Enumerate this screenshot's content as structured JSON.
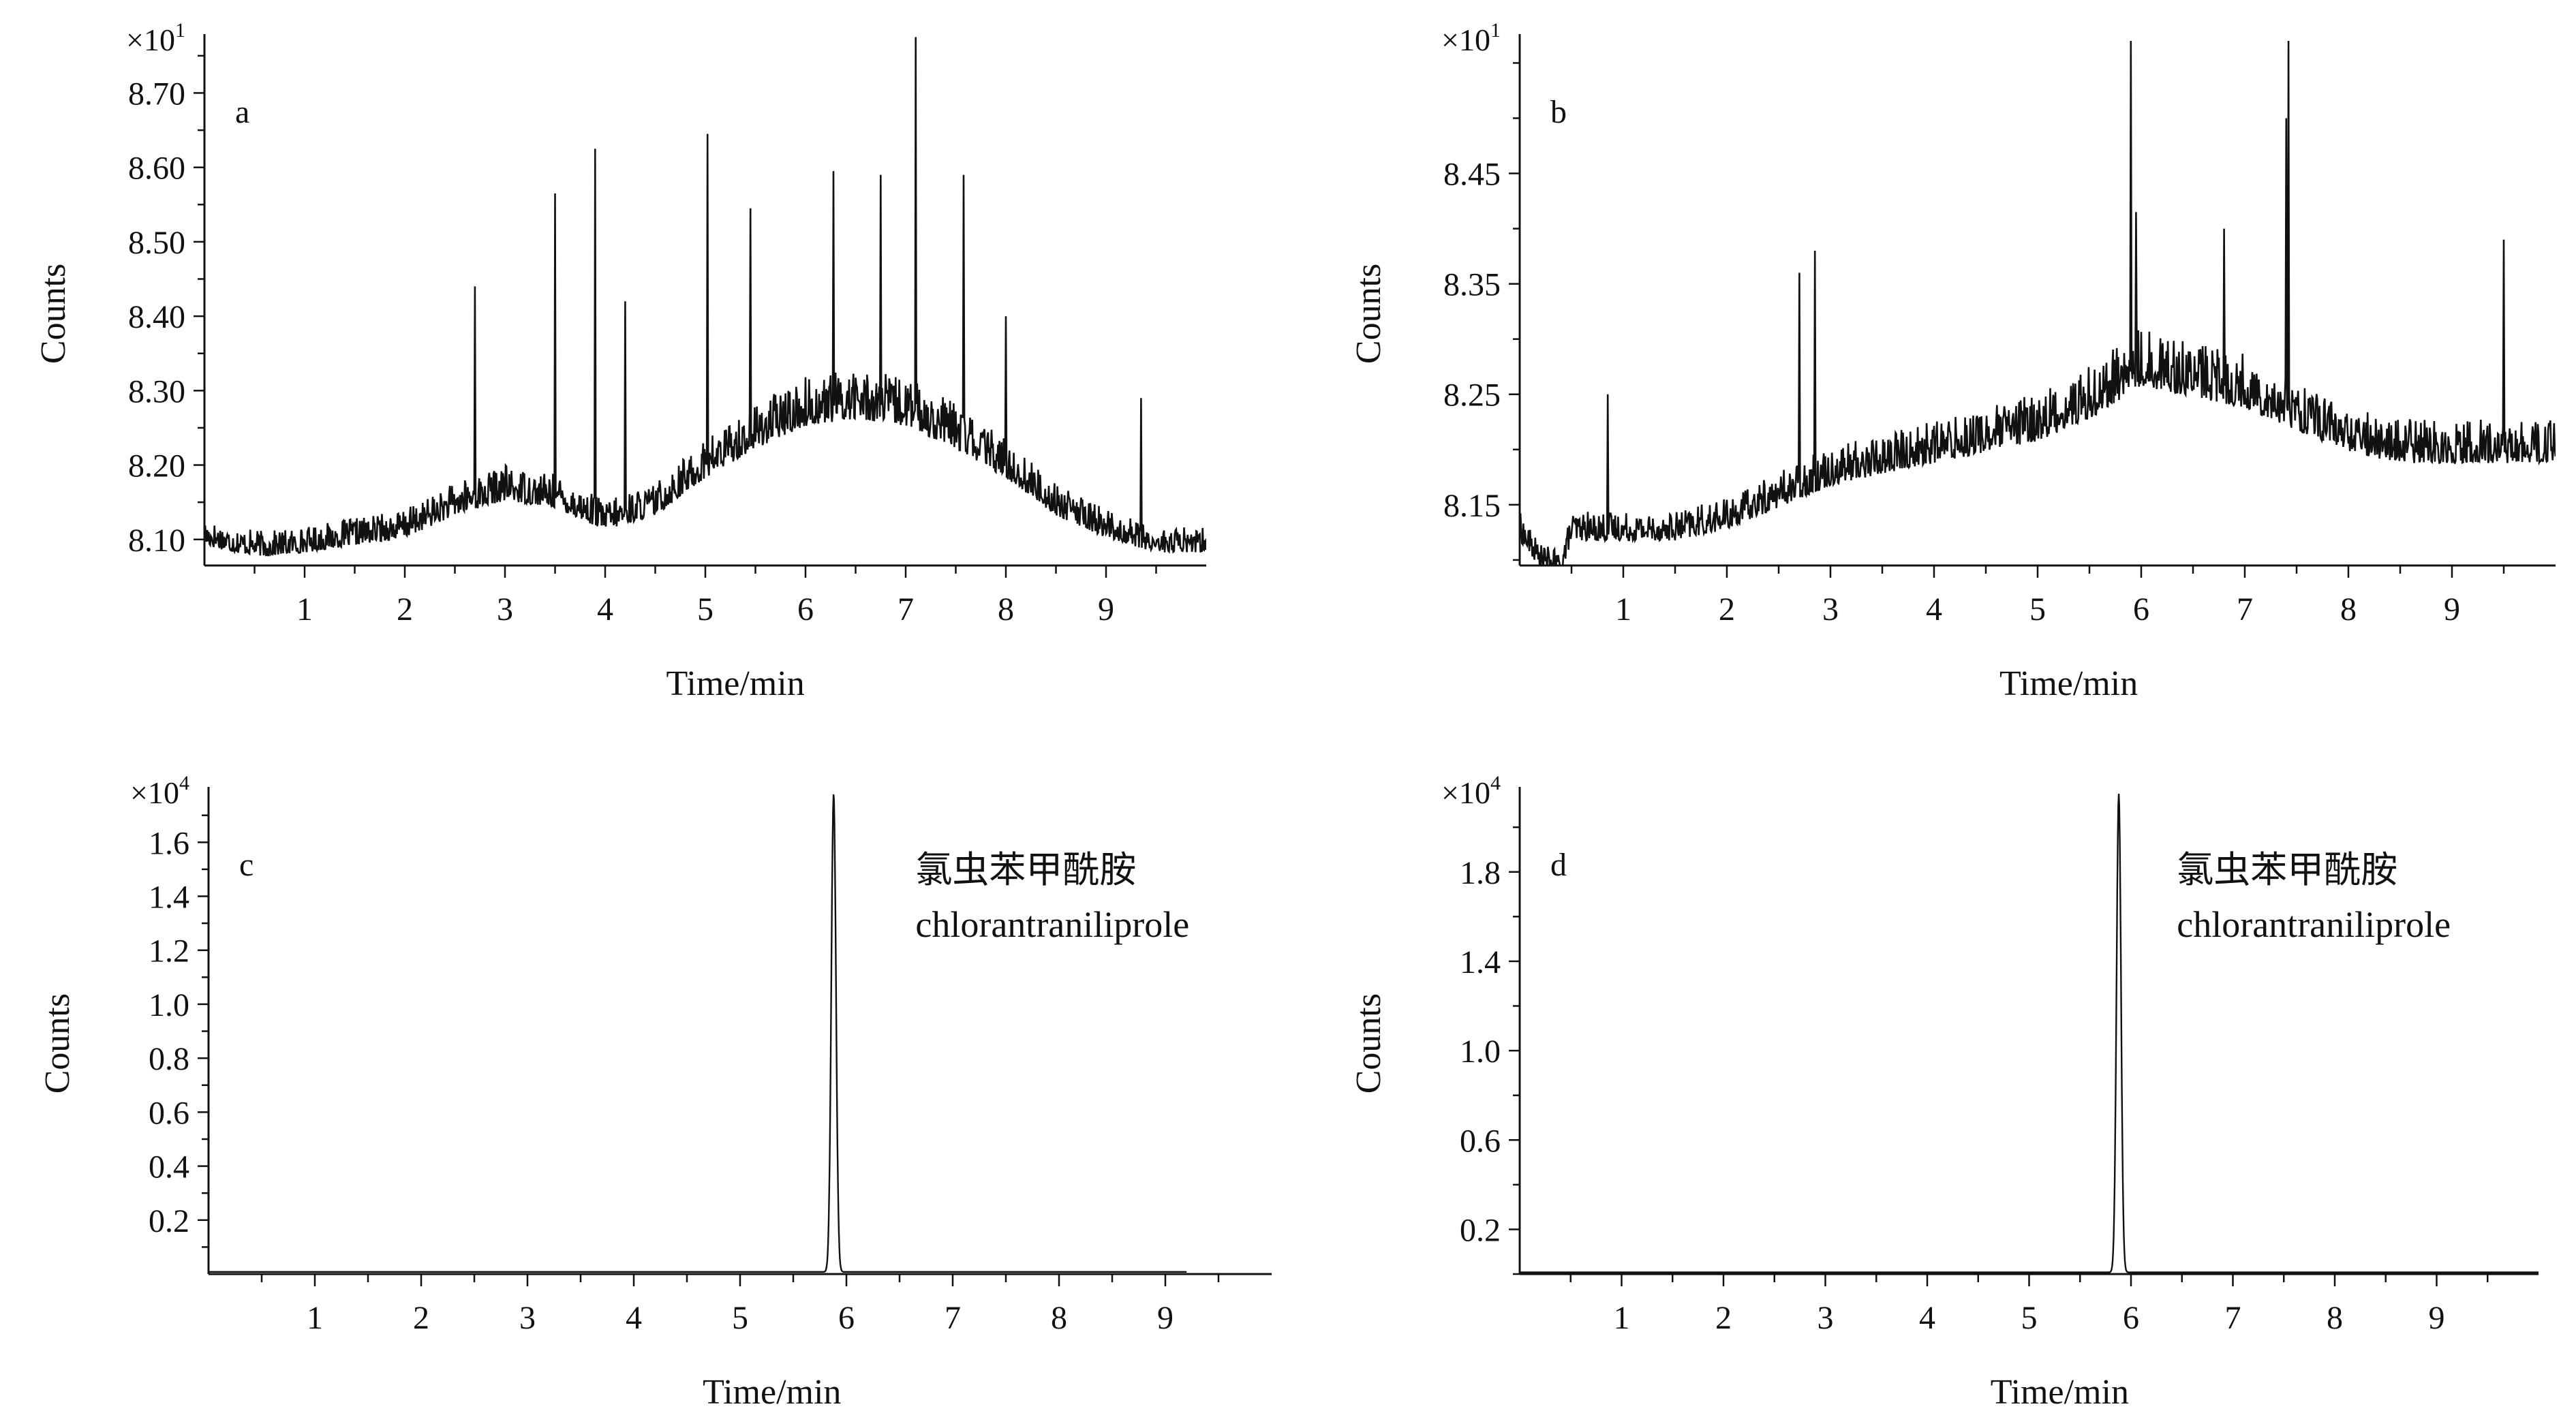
{
  "chart_data": [
    {
      "id": "a",
      "type": "line",
      "panel_label": "a",
      "xlabel": "Time/min",
      "ylabel": "Counts",
      "y_scale_label": "×10",
      "y_scale_exponent": "1",
      "xlim": [
        0,
        10
      ],
      "ylim": [
        8.065,
        8.77
      ],
      "x_ticks": [
        "1",
        "2",
        "3",
        "4",
        "5",
        "6",
        "7",
        "8",
        "9"
      ],
      "y_ticks": [
        "8.10",
        "8.20",
        "8.30",
        "8.40",
        "8.50",
        "8.60",
        "8.70"
      ],
      "grid": false,
      "annotation": [],
      "series": [
        {
          "x": [
            0,
            0.3,
            0.6,
            1.0,
            1.5,
            2.0,
            2.5,
            3.0,
            3.5,
            4.0,
            4.5,
            5.0,
            5.5,
            6.0,
            6.5,
            7.0,
            7.5,
            8.0,
            8.5,
            9.0,
            9.5,
            10.0
          ],
          "values": [
            8.11,
            8.1,
            8.095,
            8.1,
            8.11,
            8.12,
            8.15,
            8.17,
            8.16,
            8.13,
            8.15,
            8.2,
            8.24,
            8.27,
            8.28,
            8.27,
            8.24,
            8.2,
            8.15,
            8.12,
            8.1,
            8.1
          ],
          "noise": 0.05,
          "peaks": [
            [
              2.7,
              8.44
            ],
            [
              3.5,
              8.565
            ],
            [
              3.9,
              8.625
            ],
            [
              4.2,
              8.42
            ],
            [
              5.02,
              8.645
            ],
            [
              5.45,
              8.545
            ],
            [
              6.28,
              8.595
            ],
            [
              6.75,
              8.59
            ],
            [
              7.1,
              8.775
            ],
            [
              7.58,
              8.59
            ],
            [
              8.0,
              8.4
            ],
            [
              9.35,
              8.29
            ]
          ]
        }
      ]
    },
    {
      "id": "b",
      "type": "line",
      "panel_label": "b",
      "xlabel": "Time/min",
      "ylabel": "Counts",
      "y_scale_label": "×10",
      "y_scale_exponent": "1",
      "xlim": [
        0,
        10
      ],
      "ylim": [
        8.095,
        8.57
      ],
      "x_ticks": [
        "1",
        "2",
        "3",
        "4",
        "5",
        "6",
        "7",
        "8",
        "9"
      ],
      "y_ticks": [
        "8.15",
        "8.25",
        "8.35",
        "8.45"
      ],
      "grid": false,
      "annotation": [],
      "series": [
        {
          "x": [
            0,
            0.2,
            0.4,
            0.5,
            1.0,
            1.5,
            2.0,
            2.5,
            3.0,
            3.5,
            4.0,
            4.5,
            5.0,
            5.5,
            6.0,
            6.5,
            7.0,
            7.5,
            8.0,
            8.5,
            9.0,
            9.5,
            10.0
          ],
          "values": [
            8.13,
            8.105,
            8.1,
            8.13,
            8.13,
            8.13,
            8.14,
            8.16,
            8.18,
            8.19,
            8.2,
            8.21,
            8.22,
            8.24,
            8.27,
            8.26,
            8.25,
            8.23,
            8.21,
            8.2,
            8.2,
            8.2,
            8.2
          ],
          "noise": 0.035,
          "peaks": [
            [
              0.85,
              8.25
            ],
            [
              2.7,
              8.36
            ],
            [
              2.85,
              8.38
            ],
            [
              5.95,
              8.415
            ],
            [
              5.9,
              8.57
            ],
            [
              6.8,
              8.4
            ],
            [
              7.4,
              8.5
            ],
            [
              7.42,
              8.57
            ],
            [
              9.5,
              8.39
            ]
          ]
        }
      ]
    },
    {
      "id": "c",
      "type": "line",
      "panel_label": "c",
      "xlabel": "Time/min",
      "ylabel": "Counts",
      "y_scale_label": "×10",
      "y_scale_exponent": "4",
      "xlim": [
        0,
        10
      ],
      "ylim": [
        0,
        1.78
      ],
      "x_ticks": [
        "1",
        "2",
        "3",
        "4",
        "5",
        "6",
        "7",
        "8",
        "9"
      ],
      "y_ticks": [
        "0.2",
        "0.4",
        "0.6",
        "0.8",
        "1.0",
        "1.2",
        "1.4",
        "1.6"
      ],
      "grid": false,
      "annotation": [
        "氯虫苯甲酰胺",
        "chlorantraniliprole"
      ],
      "series": [
        {
          "x_start": 0,
          "x_end": 9.2,
          "baseline": 0.008,
          "peak_center": 5.88,
          "peak_height": 1.78,
          "peak_width": 0.022
        }
      ]
    },
    {
      "id": "d",
      "type": "line",
      "panel_label": "d",
      "xlabel": "Time/min",
      "ylabel": "Counts",
      "y_scale_label": "×10",
      "y_scale_exponent": "4",
      "xlim": [
        0,
        10
      ],
      "ylim": [
        0,
        2.15
      ],
      "x_ticks": [
        "1",
        "2",
        "3",
        "4",
        "5",
        "6",
        "7",
        "8",
        "9"
      ],
      "y_ticks": [
        "0.2",
        "0.6",
        "1.0",
        "1.4",
        "1.8"
      ],
      "grid": false,
      "annotation": [
        "氯虫苯甲酰胺",
        "chlorantraniliprole"
      ],
      "series": [
        {
          "x_start": 0,
          "x_end": 10,
          "baseline": 0.008,
          "peak_center": 5.88,
          "peak_height": 2.15,
          "peak_width": 0.022
        }
      ]
    }
  ]
}
